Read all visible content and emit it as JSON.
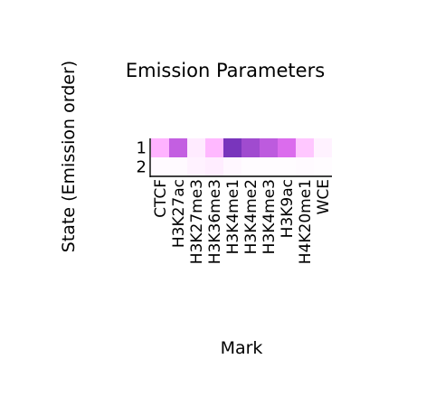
{
  "chart_data": {
    "type": "heatmap",
    "title": "Emission Parameters",
    "xlabel": "Mark",
    "ylabel": "State (Emission order)",
    "columns": [
      "CTCF",
      "H3K27ac",
      "H3K27me3",
      "H3K36me3",
      "H3K4me1",
      "H3K4me2",
      "H3K4me3",
      "H3K9ac",
      "H4K20me1",
      "WCE"
    ],
    "rows": [
      "1",
      "2"
    ],
    "values": [
      [
        0.3,
        0.7,
        0.08,
        0.28,
        0.95,
        0.82,
        0.72,
        0.62,
        0.22,
        0.05
      ],
      [
        0.02,
        0.02,
        0.05,
        0.07,
        0.03,
        0.01,
        0.01,
        0.01,
        0.02,
        0.01
      ]
    ],
    "value_range": [
      0,
      1
    ],
    "colormap": {
      "low": "#ffffff",
      "mid": "#ff80ff",
      "high": "#6a2db4"
    },
    "grid": false,
    "legend": "none"
  }
}
